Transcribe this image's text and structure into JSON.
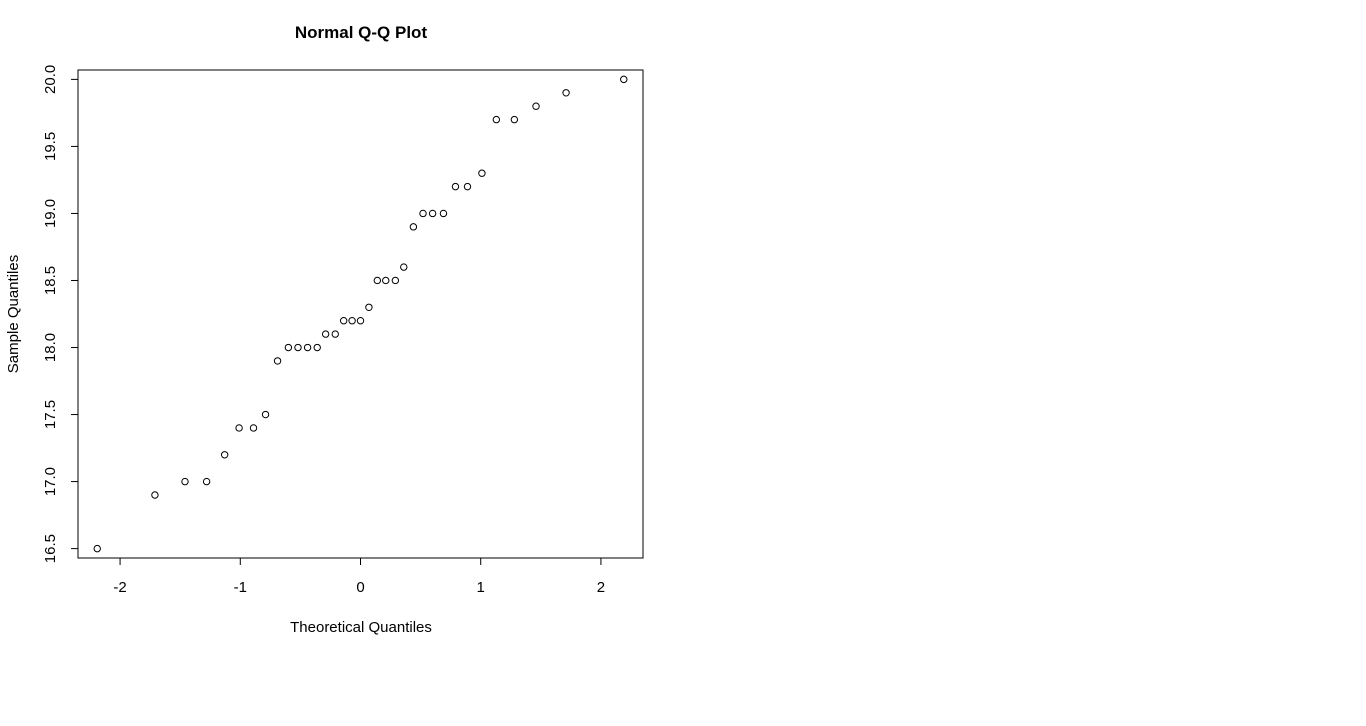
{
  "chart_data": {
    "type": "scatter",
    "title": "Normal Q-Q Plot",
    "xlabel": "Theoretical Quantiles",
    "ylabel": "Sample Quantiles",
    "xlim": [
      -2.35,
      2.35
    ],
    "ylim": [
      16.43,
      20.07
    ],
    "x_ticks": [
      -2,
      -1,
      0,
      1,
      2
    ],
    "x_tick_labels": [
      "-2",
      "-1",
      "0",
      "1",
      "2"
    ],
    "y_ticks": [
      16.5,
      17.0,
      17.5,
      18.0,
      18.5,
      19.0,
      19.5,
      20.0
    ],
    "y_tick_labels": [
      "16.5",
      "17.0",
      "17.5",
      "18.0",
      "18.5",
      "19.0",
      "19.5",
      "20.0"
    ],
    "grid": false,
    "marker": "open-circle",
    "points": [
      {
        "x": -2.19,
        "y": 16.5
      },
      {
        "x": -1.71,
        "y": 16.9
      },
      {
        "x": -1.46,
        "y": 17.0
      },
      {
        "x": -1.28,
        "y": 17.0
      },
      {
        "x": -1.13,
        "y": 17.2
      },
      {
        "x": -1.01,
        "y": 17.4
      },
      {
        "x": -0.89,
        "y": 17.4
      },
      {
        "x": -0.79,
        "y": 17.5
      },
      {
        "x": -0.69,
        "y": 17.9
      },
      {
        "x": -0.6,
        "y": 18.0
      },
      {
        "x": -0.52,
        "y": 18.0
      },
      {
        "x": -0.44,
        "y": 18.0
      },
      {
        "x": -0.36,
        "y": 18.0
      },
      {
        "x": -0.29,
        "y": 18.1
      },
      {
        "x": -0.21,
        "y": 18.1
      },
      {
        "x": -0.14,
        "y": 18.2
      },
      {
        "x": -0.07,
        "y": 18.2
      },
      {
        "x": 0.0,
        "y": 18.2
      },
      {
        "x": 0.07,
        "y": 18.3
      },
      {
        "x": 0.14,
        "y": 18.5
      },
      {
        "x": 0.21,
        "y": 18.5
      },
      {
        "x": 0.29,
        "y": 18.5
      },
      {
        "x": 0.36,
        "y": 18.6
      },
      {
        "x": 0.44,
        "y": 18.9
      },
      {
        "x": 0.52,
        "y": 19.0
      },
      {
        "x": 0.6,
        "y": 19.0
      },
      {
        "x": 0.69,
        "y": 19.0
      },
      {
        "x": 0.79,
        "y": 19.2
      },
      {
        "x": 0.89,
        "y": 19.2
      },
      {
        "x": 1.01,
        "y": 19.3
      },
      {
        "x": 1.13,
        "y": 19.7
      },
      {
        "x": 1.28,
        "y": 19.7
      },
      {
        "x": 1.46,
        "y": 19.8
      },
      {
        "x": 1.71,
        "y": 19.9
      },
      {
        "x": 2.19,
        "y": 20.0
      }
    ]
  }
}
